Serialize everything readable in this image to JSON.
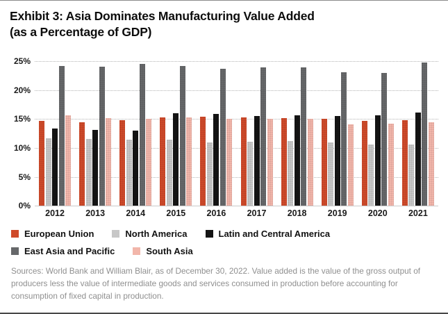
{
  "title": {
    "line1": "Exhibit 3: Asia Dominates Manufacturing Value Added",
    "line2": "(as a Percentage of GDP)"
  },
  "chart_data": {
    "type": "bar",
    "title": "Exhibit 3: Asia Dominates Manufacturing Value Added (as a Percentage of GDP)",
    "categories": [
      "2012",
      "2013",
      "2014",
      "2015",
      "2016",
      "2017",
      "2018",
      "2019",
      "2020",
      "2021"
    ],
    "series": [
      {
        "name": "European Union",
        "color": "#cf4a2a",
        "values": [
          14.7,
          14.5,
          14.8,
          15.3,
          15.4,
          15.3,
          15.2,
          15.0,
          14.7,
          14.8
        ]
      },
      {
        "name": "North America",
        "color": "#c7c7c7",
        "values": [
          11.7,
          11.6,
          11.4,
          11.4,
          11.0,
          11.1,
          11.2,
          11.0,
          10.6,
          10.6
        ]
      },
      {
        "name": "Latin and Central America",
        "color": "#141414",
        "values": [
          13.4,
          13.1,
          13.0,
          16.0,
          15.9,
          15.5,
          15.7,
          15.5,
          15.6,
          16.1
        ]
      },
      {
        "name": "East Asia and Pacific",
        "color": "#66686a",
        "values": [
          24.2,
          24.1,
          24.5,
          24.2,
          23.7,
          23.9,
          23.9,
          23.1,
          23.0,
          24.8
        ]
      },
      {
        "name": "South Asia",
        "color": "#f2b6aa",
        "values": [
          15.7,
          15.2,
          15.0,
          15.3,
          15.1,
          15.0,
          15.0,
          14.1,
          14.2,
          14.5
        ]
      }
    ],
    "xlabel": "",
    "ylabel": "",
    "ylim": [
      0,
      25
    ],
    "yticks": [
      "25%",
      "20%",
      "15%",
      "10%",
      "5%",
      "0%"
    ],
    "grid": "dotted-horizontal",
    "legend_position": "bottom-left",
    "legend_rows": [
      3,
      2
    ]
  },
  "footer": {
    "text": "Sources: World Bank and William Blair, as of December 30, 2022. Value added is the value of the gross output of producers less the value of intermediate goods and services consumed in production before accounting for consumption of fixed capital in production."
  }
}
